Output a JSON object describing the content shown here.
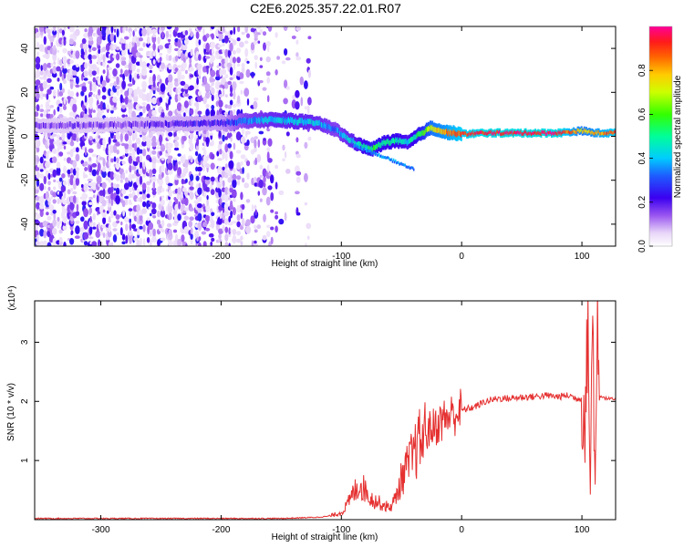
{
  "title": "C2E6.2025.357.22.01.R07",
  "chart_data": [
    {
      "type": "heatmap",
      "name": "spectrogram",
      "xlabel": "Height of straight line (km)",
      "ylabel": "Frequency (Hz)",
      "xlim": [
        -355,
        128
      ],
      "ylim": [
        -50,
        50
      ],
      "xticks": [
        -300,
        -200,
        -100,
        0,
        100
      ],
      "yticks": [
        -40,
        -20,
        0,
        20,
        40
      ],
      "colorbar": {
        "label": "Normalized spectral amplitude",
        "range": [
          0,
          1
        ],
        "ticks": [
          0.0,
          0.2,
          0.4,
          0.6,
          0.8
        ]
      },
      "noise_region": {
        "x_from": -355,
        "x_to": -125,
        "density_levels": [
          [
            -355,
            -185,
            0.75
          ],
          [
            -185,
            -160,
            0.35
          ],
          [
            -160,
            -125,
            0.15
          ]
        ]
      },
      "signal_track": {
        "x": [
          -355,
          -300,
          -250,
          -200,
          -180,
          -160,
          -140,
          -120,
          -105,
          -95,
          -85,
          -75,
          -65,
          -55,
          -45,
          -35,
          -25,
          -15,
          0,
          20,
          40,
          60,
          80,
          90,
          100,
          110,
          128
        ],
        "freq": [
          5,
          5,
          5.5,
          6,
          7,
          7.5,
          7,
          6,
          3,
          -1,
          -4,
          -6,
          -3,
          -2,
          -3,
          1,
          4,
          2,
          1,
          1.5,
          1.5,
          1.5,
          1.5,
          2,
          2.5,
          1.5,
          1.5
        ],
        "amplitude": [
          0.15,
          0.15,
          0.18,
          0.22,
          0.35,
          0.4,
          0.42,
          0.4,
          0.35,
          0.4,
          0.45,
          0.55,
          0.5,
          0.5,
          0.45,
          0.55,
          0.75,
          0.8,
          0.9,
          0.95,
          0.95,
          0.95,
          0.95,
          0.85,
          0.75,
          0.8,
          0.9
        ]
      }
    },
    {
      "type": "line",
      "name": "snr",
      "xlabel": "Height of straight line (km)",
      "ylabel": "SNR (10 * v/v)",
      "yscale_label": "(x10⁴)",
      "xlim": [
        -355,
        128
      ],
      "ylim": [
        0,
        3.7
      ],
      "xticks": [
        -300,
        -200,
        -100,
        0,
        100
      ],
      "yticks": [
        1,
        2,
        3
      ],
      "color": "#e53030",
      "series": [
        {
          "name": "SNR",
          "x": [
            -355,
            -300,
            -250,
            -200,
            -150,
            -120,
            -110,
            -100,
            -95,
            -90,
            -85,
            -80,
            -75,
            -70,
            -65,
            -60,
            -55,
            -50,
            -45,
            -40,
            -35,
            -30,
            -25,
            -20,
            -15,
            -10,
            -5,
            0,
            10,
            20,
            30,
            40,
            50,
            60,
            70,
            80,
            90,
            95,
            100,
            103,
            105,
            107,
            109,
            111,
            113,
            115,
            120,
            128
          ],
          "y": [
            0.02,
            0.02,
            0.02,
            0.02,
            0.02,
            0.04,
            0.06,
            0.12,
            0.25,
            0.45,
            0.6,
            0.5,
            0.35,
            0.3,
            0.25,
            0.2,
            0.35,
            0.7,
            0.9,
            1.1,
            1.3,
            1.45,
            1.55,
            1.6,
            1.7,
            1.75,
            1.8,
            1.85,
            1.9,
            2.0,
            2.05,
            2.05,
            2.07,
            2.08,
            2.1,
            2.08,
            2.1,
            2.05,
            2.05,
            1.7,
            3.4,
            0.5,
            3.7,
            0.3,
            3.5,
            2.1,
            2.05,
            2.03
          ]
        }
      ]
    }
  ]
}
